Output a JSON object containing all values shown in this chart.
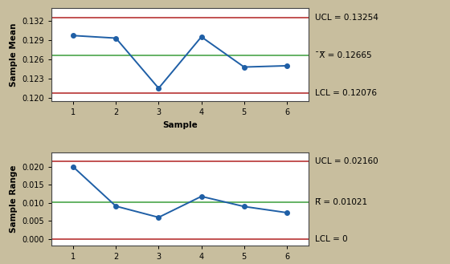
{
  "xbar_samples": [
    1,
    2,
    3,
    4,
    5,
    6
  ],
  "xbar_values": [
    0.1297,
    0.1293,
    0.1215,
    0.1295,
    0.1248,
    0.125
  ],
  "xbar_ucl": 0.13254,
  "xbar_cl": 0.12665,
  "xbar_lcl": 0.12076,
  "xbar_ylim": [
    0.1195,
    0.134
  ],
  "xbar_yticks": [
    0.12,
    0.123,
    0.126,
    0.129,
    0.132
  ],
  "xbar_ylabel": "Sample Mean",
  "xbar_ucl_label": "UCL = 0.13254",
  "xbar_cl_label": "¯X̅ = 0.12665",
  "xbar_lcl_label": "LCL = 0.12076",
  "r_samples": [
    1,
    2,
    3,
    4,
    5,
    6
  ],
  "r_values": [
    0.02,
    0.0091,
    0.006,
    0.0118,
    0.009,
    0.0073
  ],
  "r_ucl": 0.0216,
  "r_cl": 0.01021,
  "r_lcl": 0.0,
  "r_ylim": [
    -0.0018,
    0.024
  ],
  "r_yticks": [
    0.0,
    0.005,
    0.01,
    0.015,
    0.02
  ],
  "r_ylabel": "Sample Range",
  "r_ucl_label": "UCL = 0.02160",
  "r_cl_label": "R̅ = 0.01021",
  "r_lcl_label": "LCL = 0",
  "xlabel": "Sample",
  "line_color": "#1f5fa6",
  "ucl_color": "#b22222",
  "cl_color": "#3a9e3a",
  "lcl_color": "#b22222",
  "bg_color": "#c8be9e",
  "plot_bg": "#ffffff",
  "marker": "o",
  "marker_size": 4,
  "line_width": 1.4,
  "control_lw": 1.1,
  "label_fontsize": 7.5,
  "tick_fontsize": 7,
  "annotation_fontsize": 7.5
}
